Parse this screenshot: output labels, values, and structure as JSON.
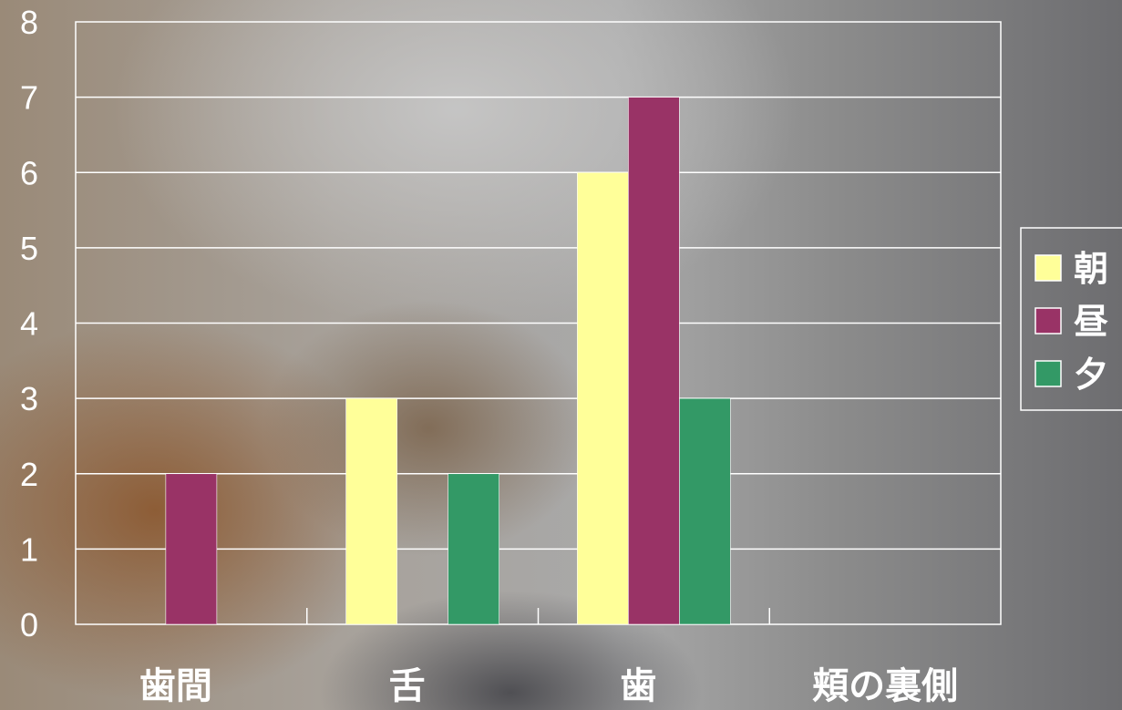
{
  "chart_data": {
    "type": "bar",
    "categories": [
      "歯間",
      "舌",
      "歯",
      "頬の裏側"
    ],
    "series": [
      {
        "name": "朝",
        "values": [
          0,
          3,
          6,
          0
        ],
        "color": "#ffff99"
      },
      {
        "name": "昼",
        "values": [
          2,
          0,
          7,
          0
        ],
        "color": "#993366"
      },
      {
        "name": "夕",
        "values": [
          0,
          2,
          3,
          0
        ],
        "color": "#339966"
      }
    ],
    "ylim": [
      0,
      8
    ],
    "yticks": [
      0,
      1,
      2,
      3,
      4,
      5,
      6,
      7,
      8
    ],
    "grid": true,
    "legend": "right",
    "title": "",
    "xlabel": "",
    "ylabel": ""
  }
}
